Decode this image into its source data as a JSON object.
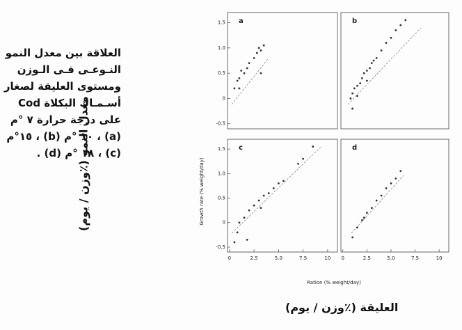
{
  "caption": [
    "العلاقة بين معدل النمو",
    "النـوعـى فـى الـوزن",
    "ومستوى العليقة لصغار",
    "أسـمـاك البكلاة Cod",
    "على درجة حرارة ٧ °م",
    "(a) ، ١٠ °م (b) ، ١٥°م",
    "(c) ، ١٨ °م (d) ."
  ],
  "ylabel_ar": "معدل النمو (٪وزن / يوم)",
  "xlabel_ar": "العليقة (٪وزن / يوم)",
  "axes": {
    "xlabel": "Ration (% weight/day)",
    "ylabel": "Growth rate (% weight/day)"
  },
  "chart_data": [
    {
      "type": "scatter",
      "title": "a",
      "color": "#333",
      "x": [
        0.5,
        0.8,
        1.0,
        1.2,
        1.5,
        1.8,
        2.0,
        2.5,
        2.8,
        3.0,
        3.2,
        3.5,
        3.2,
        1.0
      ],
      "y": [
        0.2,
        0.35,
        0.4,
        0.55,
        0.5,
        0.6,
        0.7,
        0.8,
        0.9,
        1.0,
        0.95,
        1.05,
        0.5,
        0.2
      ],
      "xlim": [
        -0.2,
        11.0
      ],
      "ylim": [
        -0.6,
        1.7
      ],
      "yticks": [
        -0.5,
        0,
        0.5,
        {
          "value": 1.0,
          "label": "1.0"
        },
        1.5
      ]
    },
    {
      "type": "scatter",
      "title": "b",
      "color": "#333",
      "x": [
        0.8,
        1.0,
        1.2,
        1.5,
        1.8,
        2.0,
        2.2,
        2.5,
        2.8,
        3.0,
        3.2,
        3.5,
        4.0,
        4.5,
        5.0,
        5.5,
        6.0,
        6.5,
        1.0,
        1.5,
        2.5
      ],
      "y": [
        0.0,
        0.1,
        0.2,
        0.25,
        0.3,
        0.4,
        0.5,
        0.55,
        0.6,
        0.7,
        0.75,
        0.8,
        0.95,
        1.1,
        1.2,
        1.35,
        1.45,
        1.55,
        -0.2,
        0.05,
        0.35
      ],
      "xlim": [
        -0.2,
        11.0
      ],
      "ylim": [
        -0.6,
        1.7
      ]
    },
    {
      "type": "scatter",
      "title": "c",
      "color": "#333",
      "x": [
        0.5,
        0.8,
        1.0,
        1.5,
        2.0,
        2.5,
        3.0,
        3.5,
        4.0,
        4.5,
        5.0,
        5.5,
        7.0,
        7.5,
        8.5,
        1.8,
        3.2
      ],
      "y": [
        -0.4,
        -0.2,
        0.0,
        0.1,
        0.25,
        0.35,
        0.45,
        0.55,
        0.6,
        0.7,
        0.8,
        0.85,
        1.2,
        1.3,
        1.55,
        -0.35,
        0.3
      ],
      "xlim": [
        -0.2,
        11.0
      ],
      "ylim": [
        -0.6,
        1.7
      ],
      "xticks": [
        0,
        2.5,
        {
          "value": 5,
          "label": "5.0"
        },
        7.5,
        10
      ],
      "yticks": [
        -0.5,
        0,
        0.5,
        {
          "value": 1.0,
          "label": "1.0"
        },
        1.5
      ]
    },
    {
      "type": "scatter",
      "title": "d",
      "color": "#333",
      "x": [
        1.0,
        1.5,
        2.0,
        2.2,
        2.5,
        3.0,
        3.5,
        4.0,
        4.5,
        5.0,
        5.5,
        6.0
      ],
      "y": [
        -0.3,
        -0.1,
        0.05,
        0.1,
        0.2,
        0.3,
        0.45,
        0.55,
        0.7,
        0.8,
        0.9,
        1.05
      ],
      "xlim": [
        -0.2,
        11.0
      ],
      "ylim": [
        -0.6,
        1.7
      ],
      "xticks": [
        0,
        2.5,
        {
          "value": 5,
          "label": "5.0"
        },
        7.5,
        10
      ]
    }
  ]
}
